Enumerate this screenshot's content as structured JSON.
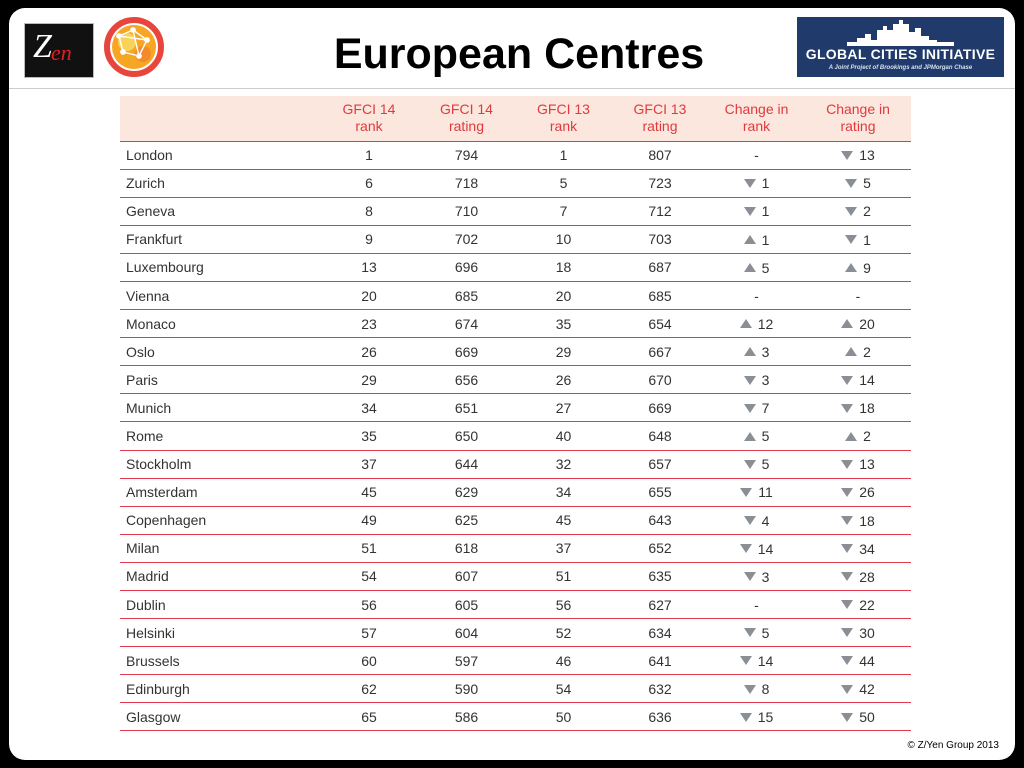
{
  "title": "European Centres",
  "logos": {
    "zyen_z": "Z",
    "zyen_en": "en",
    "gci_name": "GLOBAL CITIES INITIATIVE",
    "gci_sub": "A Joint Project of Brookings and JPMorgan Chase"
  },
  "colors": {
    "header_text": "#e03a3e",
    "header_bg": "#fbe7dd",
    "row_rule": "#e23a4e",
    "arrow": "#8a8f96",
    "gci_bg": "#1f3a6b"
  },
  "table": {
    "headers": [
      "",
      "GFCI 14\nrank",
      "GFCI 14\nrating",
      "GFCI 13\nrank",
      "GFCI 13\nrating",
      "Change in\nrank",
      "Change in\nrating"
    ],
    "rows": [
      {
        "city": "London",
        "r14": "1",
        "s14": "794",
        "r13": "1",
        "s13": "807",
        "dr": {
          "dir": "none",
          "val": "-"
        },
        "ds": {
          "dir": "down",
          "val": "13"
        }
      },
      {
        "city": "Zurich",
        "r14": "6",
        "s14": "718",
        "r13": "5",
        "s13": "723",
        "dr": {
          "dir": "down",
          "val": "1"
        },
        "ds": {
          "dir": "down",
          "val": "5"
        }
      },
      {
        "city": "Geneva",
        "r14": "8",
        "s14": "710",
        "r13": "7",
        "s13": "712",
        "dr": {
          "dir": "down",
          "val": "1"
        },
        "ds": {
          "dir": "down",
          "val": "2"
        }
      },
      {
        "city": "Frankfurt",
        "r14": "9",
        "s14": "702",
        "r13": "10",
        "s13": "703",
        "dr": {
          "dir": "up",
          "val": "1"
        },
        "ds": {
          "dir": "down",
          "val": "1"
        }
      },
      {
        "city": "Luxembourg",
        "r14": "13",
        "s14": "696",
        "r13": "18",
        "s13": "687",
        "dr": {
          "dir": "up",
          "val": "5"
        },
        "ds": {
          "dir": "up",
          "val": "9"
        }
      },
      {
        "city": "Vienna",
        "r14": "20",
        "s14": "685",
        "r13": "20",
        "s13": "685",
        "dr": {
          "dir": "none",
          "val": "-"
        },
        "ds": {
          "dir": "none",
          "val": "-"
        }
      },
      {
        "city": "Monaco",
        "r14": "23",
        "s14": "674",
        "r13": "35",
        "s13": "654",
        "dr": {
          "dir": "up",
          "val": "12"
        },
        "ds": {
          "dir": "up",
          "val": "20"
        }
      },
      {
        "city": "Oslo",
        "r14": "26",
        "s14": "669",
        "r13": "29",
        "s13": "667",
        "dr": {
          "dir": "up",
          "val": "3"
        },
        "ds": {
          "dir": "up",
          "val": "2"
        }
      },
      {
        "city": "Paris",
        "r14": "29",
        "s14": "656",
        "r13": "26",
        "s13": "670",
        "dr": {
          "dir": "down",
          "val": "3"
        },
        "ds": {
          "dir": "down",
          "val": "14"
        }
      },
      {
        "city": "Munich",
        "r14": "34",
        "s14": "651",
        "r13": "27",
        "s13": "669",
        "dr": {
          "dir": "down",
          "val": "7"
        },
        "ds": {
          "dir": "down",
          "val": "18"
        }
      },
      {
        "city": "Rome",
        "r14": "35",
        "s14": "650",
        "r13": "40",
        "s13": "648",
        "dr": {
          "dir": "up",
          "val": "5"
        },
        "ds": {
          "dir": "up",
          "val": "2"
        }
      },
      {
        "city": "Stockholm",
        "r14": "37",
        "s14": "644",
        "r13": "32",
        "s13": "657",
        "dr": {
          "dir": "down",
          "val": "5"
        },
        "ds": {
          "dir": "down",
          "val": "13"
        }
      },
      {
        "city": "Amsterdam",
        "r14": "45",
        "s14": "629",
        "r13": "34",
        "s13": "655",
        "dr": {
          "dir": "down",
          "val": "11"
        },
        "ds": {
          "dir": "down",
          "val": "26"
        }
      },
      {
        "city": "Copenhagen",
        "r14": "49",
        "s14": "625",
        "r13": "45",
        "s13": "643",
        "dr": {
          "dir": "down",
          "val": "4"
        },
        "ds": {
          "dir": "down",
          "val": "18"
        }
      },
      {
        "city": "Milan",
        "r14": "51",
        "s14": "618",
        "r13": "37",
        "s13": "652",
        "dr": {
          "dir": "down",
          "val": "14"
        },
        "ds": {
          "dir": "down",
          "val": "34"
        }
      },
      {
        "city": "Madrid",
        "r14": "54",
        "s14": "607",
        "r13": "51",
        "s13": "635",
        "dr": {
          "dir": "down",
          "val": "3"
        },
        "ds": {
          "dir": "down",
          "val": "28"
        }
      },
      {
        "city": "Dublin",
        "r14": "56",
        "s14": "605",
        "r13": "56",
        "s13": "627",
        "dr": {
          "dir": "none",
          "val": "-"
        },
        "ds": {
          "dir": "down",
          "val": "22"
        }
      },
      {
        "city": "Helsinki",
        "r14": "57",
        "s14": "604",
        "r13": "52",
        "s13": "634",
        "dr": {
          "dir": "down",
          "val": "5"
        },
        "ds": {
          "dir": "down",
          "val": "30"
        }
      },
      {
        "city": "Brussels",
        "r14": "60",
        "s14": "597",
        "r13": "46",
        "s13": "641",
        "dr": {
          "dir": "down",
          "val": "14"
        },
        "ds": {
          "dir": "down",
          "val": "44"
        }
      },
      {
        "city": "Edinburgh",
        "r14": "62",
        "s14": "590",
        "r13": "54",
        "s13": "632",
        "dr": {
          "dir": "down",
          "val": "8"
        },
        "ds": {
          "dir": "down",
          "val": "42"
        }
      },
      {
        "city": "Glasgow",
        "r14": "65",
        "s14": "586",
        "r13": "50",
        "s13": "636",
        "dr": {
          "dir": "down",
          "val": "15"
        },
        "ds": {
          "dir": "down",
          "val": "50"
        }
      }
    ]
  },
  "footer": {
    "copyright": "© Z/Yen Group 2013"
  }
}
